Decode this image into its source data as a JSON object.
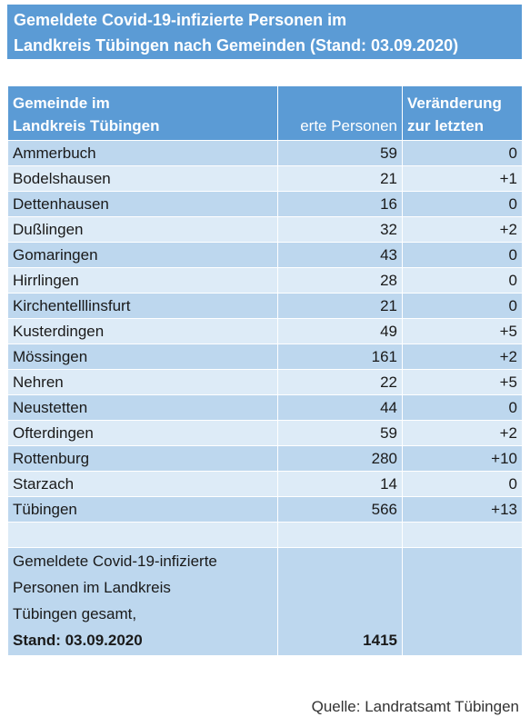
{
  "title": {
    "line1": "Gemeldete Covid-19-infizierte Personen im",
    "line2": "Landkreis Tübingen nach Gemeinden (Stand: 03.09.2020)"
  },
  "table": {
    "headers": {
      "gemeinde": [
        "Gemeinde im",
        "Landkreis Tübingen"
      ],
      "personen": "erte Personen",
      "veraenderung": [
        "Veränderung",
        "zur letzten"
      ]
    },
    "rows": [
      {
        "gemeinde": "Ammerbuch",
        "personen": "59",
        "veraenderung": "0"
      },
      {
        "gemeinde": "Bodelshausen",
        "personen": "21",
        "veraenderung": "+1"
      },
      {
        "gemeinde": "Dettenhausen",
        "personen": "16",
        "veraenderung": "0"
      },
      {
        "gemeinde": "Dußlingen",
        "personen": "32",
        "veraenderung": "+2"
      },
      {
        "gemeinde": "Gomaringen",
        "personen": "43",
        "veraenderung": "0"
      },
      {
        "gemeinde": "Hirrlingen",
        "personen": "28",
        "veraenderung": "0"
      },
      {
        "gemeinde": "Kirchentelllinsfurt",
        "personen": "21",
        "veraenderung": "0"
      },
      {
        "gemeinde": "Kusterdingen",
        "personen": "49",
        "veraenderung": "+5"
      },
      {
        "gemeinde": "Mössingen",
        "personen": "161",
        "veraenderung": "+2"
      },
      {
        "gemeinde": "Nehren",
        "personen": "22",
        "veraenderung": "+5"
      },
      {
        "gemeinde": "Neustetten",
        "personen": "44",
        "veraenderung": "0"
      },
      {
        "gemeinde": "Ofterdingen",
        "personen": "59",
        "veraenderung": "+2"
      },
      {
        "gemeinde": "Rottenburg",
        "personen": "280",
        "veraenderung": "+10"
      },
      {
        "gemeinde": "Starzach",
        "personen": "14",
        "veraenderung": "0"
      },
      {
        "gemeinde": "Tübingen",
        "personen": "566",
        "veraenderung": "+13"
      }
    ],
    "total": {
      "label_lines": [
        "Gemeldete Covid-19-infizierte",
        "Personen im Landkreis",
        "Tübingen gesamt,"
      ],
      "stand": "Stand: 03.09.2020",
      "value": "1415"
    }
  },
  "source": "Quelle: Landratsamt Tübingen",
  "colors": {
    "header_blue": "#5b9bd5",
    "row_dark": "#bdd7ee",
    "row_light": "#ddebf7"
  }
}
